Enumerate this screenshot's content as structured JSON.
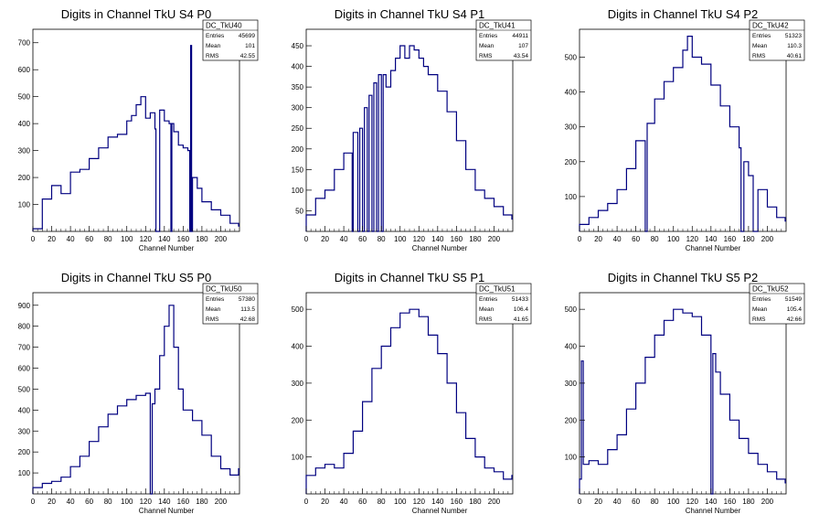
{
  "chart_data": [
    {
      "type": "histogram",
      "title": "Digits in Channel TkU S4 P0",
      "xlabel": "Channel Number",
      "ylabel": "",
      "xlim": [
        0,
        220
      ],
      "ylim": [
        0,
        750
      ],
      "xticks": [
        0,
        20,
        40,
        60,
        80,
        100,
        120,
        140,
        160,
        180,
        200
      ],
      "yticks": [
        100,
        200,
        300,
        400,
        500,
        600,
        700
      ],
      "stats": {
        "name": "DC_TkU40",
        "rows": [
          [
            "Entries",
            "45699"
          ],
          [
            "Mean",
            "101"
          ],
          [
            "RMS",
            "42.55"
          ]
        ]
      },
      "x": [
        0,
        10,
        20,
        30,
        40,
        50,
        60,
        70,
        80,
        90,
        100,
        105,
        110,
        115,
        120,
        125,
        130,
        131,
        135,
        140,
        145,
        147,
        148,
        150,
        155,
        160,
        165,
        167,
        168,
        169,
        170,
        175,
        180,
        190,
        200,
        210,
        219
      ],
      "values": [
        10,
        120,
        170,
        140,
        220,
        230,
        270,
        310,
        350,
        360,
        410,
        430,
        470,
        500,
        420,
        440,
        380,
        0,
        450,
        410,
        400,
        0,
        400,
        370,
        320,
        310,
        300,
        0,
        690,
        0,
        200,
        160,
        110,
        80,
        60,
        30,
        20
      ]
    },
    {
      "type": "histogram",
      "title": "Digits in Channel TkU S4 P1",
      "xlabel": "Channel Number",
      "ylabel": "",
      "xlim": [
        0,
        220
      ],
      "ylim": [
        0,
        490
      ],
      "xticks": [
        0,
        20,
        40,
        60,
        80,
        100,
        120,
        140,
        160,
        180,
        200
      ],
      "yticks": [
        50,
        100,
        150,
        200,
        250,
        300,
        350,
        400,
        450
      ],
      "stats": {
        "name": "DC_TkU41",
        "rows": [
          [
            "Entries",
            "44911"
          ],
          [
            "Mean",
            "107"
          ],
          [
            "RMS",
            "43.54"
          ]
        ]
      },
      "x": [
        0,
        10,
        20,
        30,
        40,
        49,
        50,
        55,
        57,
        60,
        62,
        65,
        67,
        70,
        72,
        75,
        77,
        80,
        82,
        85,
        90,
        95,
        100,
        105,
        110,
        115,
        120,
        125,
        130,
        140,
        150,
        160,
        170,
        180,
        190,
        200,
        210,
        219
      ],
      "values": [
        40,
        80,
        100,
        150,
        190,
        0,
        240,
        0,
        250,
        0,
        300,
        0,
        330,
        0,
        360,
        0,
        380,
        0,
        380,
        350,
        390,
        420,
        450,
        420,
        450,
        440,
        420,
        400,
        380,
        340,
        290,
        220,
        150,
        100,
        80,
        60,
        40,
        30
      ]
    },
    {
      "type": "histogram",
      "title": "Digits in Channel TkU S4 P2",
      "xlabel": "Channel Number",
      "ylabel": "",
      "xlim": [
        0,
        220
      ],
      "ylim": [
        0,
        580
      ],
      "xticks": [
        0,
        20,
        40,
        60,
        80,
        100,
        120,
        140,
        160,
        180,
        200
      ],
      "yticks": [
        100,
        200,
        300,
        400,
        500
      ],
      "stats": {
        "name": "DC_TkU42",
        "rows": [
          [
            "Entries",
            "51323"
          ],
          [
            "Mean",
            "110.3"
          ],
          [
            "RMS",
            "40.61"
          ]
        ]
      },
      "x": [
        0,
        10,
        20,
        30,
        40,
        50,
        60,
        70,
        72,
        80,
        90,
        100,
        110,
        115,
        120,
        130,
        140,
        150,
        160,
        170,
        172,
        175,
        180,
        185,
        190,
        200,
        210,
        219
      ],
      "values": [
        20,
        40,
        60,
        80,
        120,
        180,
        260,
        0,
        310,
        380,
        430,
        470,
        520,
        560,
        500,
        480,
        420,
        360,
        300,
        240,
        0,
        200,
        160,
        0,
        120,
        70,
        40,
        30
      ]
    },
    {
      "type": "histogram",
      "title": "Digits in Channel TkU S5 P0",
      "xlabel": "Channel Number",
      "ylabel": "",
      "xlim": [
        0,
        220
      ],
      "ylim": [
        0,
        960
      ],
      "xticks": [
        0,
        20,
        40,
        60,
        80,
        100,
        120,
        140,
        160,
        180,
        200
      ],
      "yticks": [
        100,
        200,
        300,
        400,
        500,
        600,
        700,
        800,
        900
      ],
      "stats": {
        "name": "DC_TkU50",
        "rows": [
          [
            "Entries",
            "57380"
          ],
          [
            "Mean",
            "113.5"
          ],
          [
            "RMS",
            "42.68"
          ]
        ]
      },
      "x": [
        0,
        10,
        20,
        30,
        40,
        50,
        60,
        70,
        80,
        90,
        100,
        110,
        120,
        125,
        127,
        130,
        135,
        140,
        145,
        150,
        155,
        160,
        170,
        180,
        190,
        200,
        210,
        219
      ],
      "values": [
        30,
        50,
        60,
        80,
        130,
        180,
        250,
        320,
        380,
        420,
        450,
        470,
        480,
        0,
        430,
        500,
        660,
        800,
        900,
        700,
        500,
        400,
        350,
        280,
        180,
        120,
        90,
        120
      ]
    },
    {
      "type": "histogram",
      "title": "Digits in Channel TkU S5 P1",
      "xlabel": "Channel Number",
      "ylabel": "",
      "xlim": [
        0,
        220
      ],
      "ylim": [
        0,
        545
      ],
      "xticks": [
        0,
        20,
        40,
        60,
        80,
        100,
        120,
        140,
        160,
        180,
        200
      ],
      "yticks": [
        100,
        200,
        300,
        400,
        500
      ],
      "stats": {
        "name": "DC_TkU51",
        "rows": [
          [
            "Entries",
            "51433"
          ],
          [
            "Mean",
            "106.4"
          ],
          [
            "RMS",
            "41.65"
          ]
        ]
      },
      "x": [
        0,
        10,
        20,
        30,
        40,
        50,
        60,
        70,
        80,
        90,
        100,
        110,
        120,
        130,
        140,
        150,
        160,
        170,
        180,
        190,
        200,
        210,
        219
      ],
      "values": [
        50,
        70,
        80,
        70,
        110,
        170,
        250,
        340,
        400,
        450,
        490,
        500,
        480,
        430,
        380,
        300,
        220,
        150,
        100,
        70,
        60,
        40,
        50
      ]
    },
    {
      "type": "histogram",
      "title": "Digits in Channel TkU S5 P2",
      "xlabel": "Channel Number",
      "ylabel": "",
      "xlim": [
        0,
        220
      ],
      "ylim": [
        0,
        545
      ],
      "xticks": [
        0,
        20,
        40,
        60,
        80,
        100,
        120,
        140,
        160,
        180,
        200
      ],
      "yticks": [
        100,
        200,
        300,
        400,
        500
      ],
      "stats": {
        "name": "DC_TkU52",
        "rows": [
          [
            "Entries",
            "51549"
          ],
          [
            "Mean",
            "105.4"
          ],
          [
            "RMS",
            "42.66"
          ]
        ]
      },
      "x": [
        0,
        2,
        4,
        10,
        20,
        30,
        40,
        50,
        60,
        70,
        80,
        90,
        100,
        110,
        120,
        130,
        140,
        142,
        145,
        150,
        160,
        170,
        180,
        190,
        200,
        210,
        219
      ],
      "values": [
        40,
        360,
        80,
        90,
        80,
        120,
        160,
        230,
        300,
        370,
        430,
        470,
        500,
        490,
        480,
        430,
        0,
        380,
        330,
        270,
        200,
        150,
        110,
        80,
        60,
        40,
        30
      ]
    }
  ]
}
